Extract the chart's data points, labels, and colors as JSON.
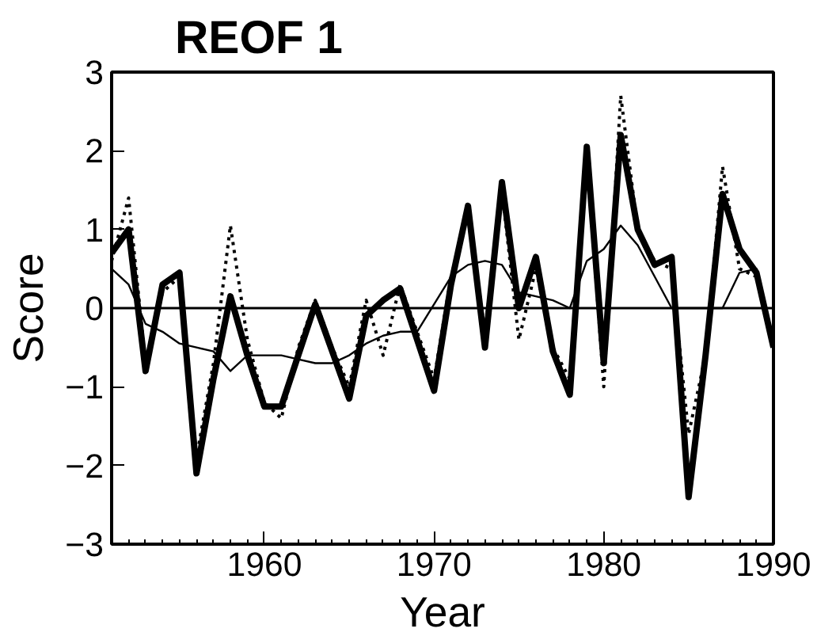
{
  "chart_data": {
    "type": "line",
    "title": "REOF 1",
    "xlabel": "Year",
    "ylabel": "Score",
    "xlim": [
      1951,
      1990
    ],
    "xticks": [
      1960,
      1970,
      1980,
      1990
    ],
    "ylim": [
      -3,
      3
    ],
    "yticks": [
      -3,
      -2,
      -1,
      0,
      1,
      2,
      3
    ],
    "grid": false,
    "ref_lines": [
      {
        "axis": "y",
        "value": 0,
        "color": "#000000"
      }
    ],
    "x": [
      1951,
      1952,
      1953,
      1954,
      1955,
      1956,
      1957,
      1958,
      1959,
      1960,
      1961,
      1962,
      1963,
      1964,
      1965,
      1966,
      1967,
      1968,
      1969,
      1970,
      1971,
      1972,
      1973,
      1974,
      1975,
      1976,
      1977,
      1978,
      1979,
      1980,
      1981,
      1982,
      1983,
      1984,
      1985,
      1986,
      1987,
      1988,
      1989,
      1990
    ],
    "series": [
      {
        "color": "#000000",
        "line_style": "solid",
        "values": [
          0.7,
          1.0,
          -0.8,
          0.3,
          0.45,
          -2.1,
          -0.9,
          0.15,
          -0.6,
          -1.25,
          -1.25,
          -0.6,
          0.05,
          -0.55,
          -1.15,
          -0.1,
          0.1,
          0.25,
          -0.4,
          -1.05,
          0.3,
          1.3,
          -0.5,
          1.6,
          0.0,
          0.65,
          -0.55,
          -1.1,
          2.05,
          -0.7,
          2.2,
          1.0,
          0.55,
          0.65,
          -2.4,
          -0.6,
          1.45,
          0.75,
          0.45,
          -0.5
        ]
      },
      {
        "color": "#000000",
        "line_style": "dotted",
        "values": [
          0.6,
          1.4,
          -0.7,
          0.2,
          0.4,
          -1.9,
          -0.7,
          1.05,
          -0.4,
          -1.2,
          -1.4,
          -0.5,
          0.1,
          -0.5,
          -1.0,
          0.1,
          -0.6,
          0.3,
          -0.3,
          -0.9,
          0.4,
          1.2,
          -0.3,
          1.5,
          -0.4,
          0.5,
          -0.5,
          -0.9,
          2.0,
          -1.0,
          2.7,
          1.0,
          0.6,
          0.5,
          -1.6,
          -0.6,
          1.8,
          0.5,
          0.4,
          -0.4
        ]
      },
      {
        "color": "#000000",
        "line_style": "solid",
        "values": [
          0.5,
          0.3,
          -0.2,
          -0.3,
          -0.45,
          -0.5,
          -0.55,
          -0.8,
          -0.6,
          -0.6,
          -0.6,
          -0.65,
          -0.7,
          -0.7,
          -0.6,
          -0.45,
          -0.35,
          -0.3,
          -0.3,
          0.05,
          0.4,
          0.55,
          0.6,
          0.55,
          0.2,
          0.15,
          0.1,
          0.0,
          0.6,
          0.75,
          1.05,
          0.8,
          0.4,
          0.0,
          0.0,
          0.0,
          0.0,
          0.45,
          0.5,
          -0.4
        ]
      }
    ]
  }
}
